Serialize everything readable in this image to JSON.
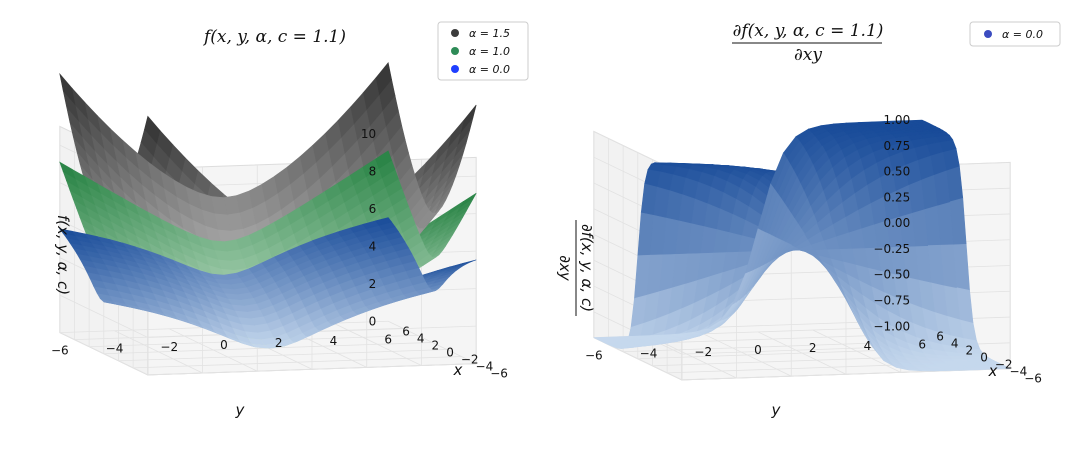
{
  "chart_data": [
    {
      "type": "surface3d",
      "title": "f(x, y, α, c = 1.1)",
      "xlabel": "x",
      "ylabel": "y",
      "zlabel": "f(x, y, α, c)",
      "x_ticks": [
        "−6",
        "−4",
        "−2",
        "0",
        "2",
        "4",
        "6"
      ],
      "y_ticks": [
        "−6",
        "−4",
        "−2",
        "0",
        "2",
        "4",
        "6"
      ],
      "z_ticks": [
        "0",
        "2",
        "4",
        "6",
        "8",
        "10"
      ],
      "xlim": [
        -6,
        6
      ],
      "ylim": [
        -6,
        6
      ],
      "zlim": [
        0,
        11
      ],
      "legend_placement": "top-right",
      "series": [
        {
          "name": "α = 1.5",
          "alpha": 1.5,
          "c": 1.1,
          "color": "#3c3c3c",
          "colormap": "Greys"
        },
        {
          "name": "α = 1.0",
          "alpha": 1.0,
          "c": 1.1,
          "color": "#2e8b57",
          "colormap": "Greens"
        },
        {
          "name": "α = 0.0",
          "alpha": 0.0,
          "c": 1.1,
          "color": "#1f3fff",
          "colormap": "Blues"
        }
      ]
    },
    {
      "type": "surface3d",
      "title_numerator": "∂f(x, y, α, c = 1.1)",
      "title_denominator": "∂xy",
      "xlabel": "x",
      "ylabel": "y",
      "zlabel_numerator": "∂f(x, y, α, c)",
      "zlabel_denominator": "∂xy",
      "x_ticks": [
        "−6",
        "−4",
        "−2",
        "0",
        "2",
        "4",
        "6"
      ],
      "y_ticks": [
        "−6",
        "−4",
        "−2",
        "0",
        "2",
        "4",
        "6"
      ],
      "z_ticks": [
        "−1.00",
        "−0.75",
        "−0.50",
        "−0.25",
        "0.00",
        "0.25",
        "0.50",
        "0.75",
        "1.00"
      ],
      "xlim": [
        -6,
        6
      ],
      "ylim": [
        -6,
        6
      ],
      "zlim": [
        -1,
        1
      ],
      "legend_placement": "top-right",
      "series": [
        {
          "name": "α = 0.0",
          "alpha": 0.0,
          "c": 1.1,
          "color": "#3b4cc0",
          "colormap": "Blues"
        }
      ]
    }
  ]
}
